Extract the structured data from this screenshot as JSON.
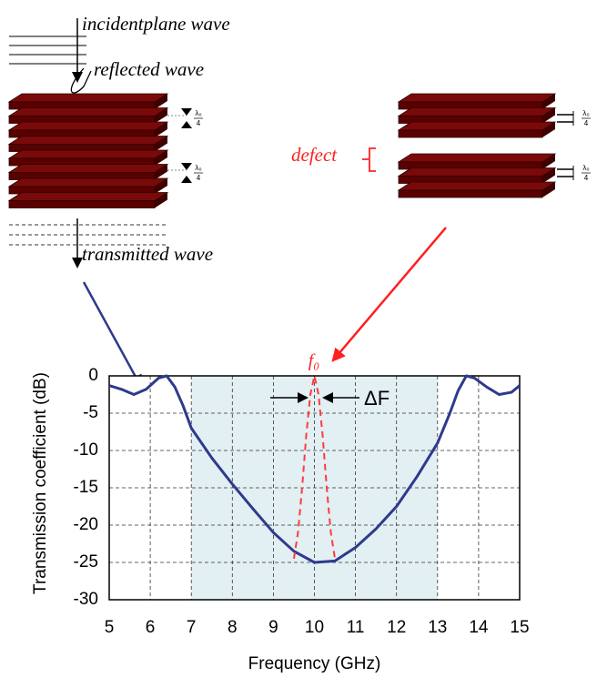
{
  "diagram": {
    "incident": "incidentplane wave",
    "reflected": "reflected wave",
    "transmitted": "transmitted wave",
    "defect": "defect",
    "quarter": {
      "num": "λ₀",
      "den": "4"
    }
  },
  "chart_data": {
    "type": "line",
    "x_label": "Frequency (GHz)",
    "y_label": "Transmission coefficient (dB)",
    "annotations": {
      "f0": "f₀",
      "delta_f": "ΔF"
    },
    "band": [
      7,
      13
    ],
    "band_color": "#e2eff3",
    "series": [
      {
        "color": "#2e3a8c",
        "style": "solid",
        "x": [
          5,
          5.3,
          5.6,
          5.9,
          6.2,
          6.4,
          6.6,
          6.8,
          7,
          7.5,
          8,
          8.5,
          9,
          9.5,
          10,
          10.5,
          11,
          11.5,
          12,
          12.5,
          13,
          13.3,
          13.5,
          13.7,
          13.9,
          14.2,
          14.5,
          14.8,
          15
        ],
        "values": [
          -1.3,
          -1.8,
          -2.5,
          -1.8,
          -0.3,
          0,
          -1.5,
          -4,
          -7,
          -11,
          -14.5,
          -17.8,
          -21,
          -23.5,
          -25,
          -24.8,
          -23,
          -20.5,
          -17.5,
          -13.5,
          -9,
          -5,
          -2,
          0,
          -0.3,
          -1.5,
          -2.5,
          -2.2,
          -1.3
        ]
      },
      {
        "color": "#ff3b3b",
        "style": "dashed",
        "x": [
          9.5,
          9.6,
          9.7,
          9.8,
          9.9,
          10,
          10.1,
          10.2,
          10.3,
          10.4,
          10.5
        ],
        "values": [
          -24.5,
          -21,
          -15,
          -8,
          -2.5,
          0,
          -2.5,
          -8,
          -15,
          -21,
          -24.5
        ]
      }
    ],
    "xlim": [
      5,
      15
    ],
    "xticks": [
      5,
      6,
      7,
      8,
      9,
      10,
      11,
      12,
      13,
      14,
      15
    ],
    "ylim": [
      -30,
      0
    ],
    "yticks": [
      -30,
      -25,
      -20,
      -15,
      -10,
      -5,
      0
    ],
    "grid": true
  }
}
